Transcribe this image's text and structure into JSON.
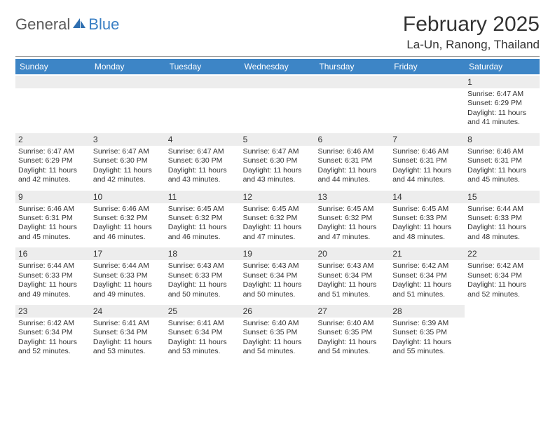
{
  "brand": {
    "general": "General",
    "blue": "Blue"
  },
  "title": "February 2025",
  "location": "La-Un, Ranong, Thailand",
  "dayheaders": [
    "Sunday",
    "Monday",
    "Tuesday",
    "Wednesday",
    "Thursday",
    "Friday",
    "Saturday"
  ],
  "colors": {
    "header_bg": "#3d85c6",
    "header_text": "#ffffff",
    "numbar_bg": "#ededed",
    "text": "#333333",
    "rule": "#9a9a9a",
    "logo_gray": "#5a5a5a",
    "logo_blue": "#3a7fc4"
  },
  "typography": {
    "title_fontsize": 30,
    "location_fontsize": 17,
    "dayheader_fontsize": 12,
    "daynum_fontsize": 12,
    "body_fontsize": 10.5
  },
  "layout": {
    "columns": 7,
    "rows": 5,
    "blank_cells_first_row": 6
  },
  "weeks": [
    [
      null,
      null,
      null,
      null,
      null,
      null,
      {
        "num": "1",
        "sunrise": "Sunrise: 6:47 AM",
        "sunset": "Sunset: 6:29 PM",
        "day1": "Daylight: 11 hours",
        "day2": "and 41 minutes."
      }
    ],
    [
      {
        "num": "2",
        "sunrise": "Sunrise: 6:47 AM",
        "sunset": "Sunset: 6:29 PM",
        "day1": "Daylight: 11 hours",
        "day2": "and 42 minutes."
      },
      {
        "num": "3",
        "sunrise": "Sunrise: 6:47 AM",
        "sunset": "Sunset: 6:30 PM",
        "day1": "Daylight: 11 hours",
        "day2": "and 42 minutes."
      },
      {
        "num": "4",
        "sunrise": "Sunrise: 6:47 AM",
        "sunset": "Sunset: 6:30 PM",
        "day1": "Daylight: 11 hours",
        "day2": "and 43 minutes."
      },
      {
        "num": "5",
        "sunrise": "Sunrise: 6:47 AM",
        "sunset": "Sunset: 6:30 PM",
        "day1": "Daylight: 11 hours",
        "day2": "and 43 minutes."
      },
      {
        "num": "6",
        "sunrise": "Sunrise: 6:46 AM",
        "sunset": "Sunset: 6:31 PM",
        "day1": "Daylight: 11 hours",
        "day2": "and 44 minutes."
      },
      {
        "num": "7",
        "sunrise": "Sunrise: 6:46 AM",
        "sunset": "Sunset: 6:31 PM",
        "day1": "Daylight: 11 hours",
        "day2": "and 44 minutes."
      },
      {
        "num": "8",
        "sunrise": "Sunrise: 6:46 AM",
        "sunset": "Sunset: 6:31 PM",
        "day1": "Daylight: 11 hours",
        "day2": "and 45 minutes."
      }
    ],
    [
      {
        "num": "9",
        "sunrise": "Sunrise: 6:46 AM",
        "sunset": "Sunset: 6:31 PM",
        "day1": "Daylight: 11 hours",
        "day2": "and 45 minutes."
      },
      {
        "num": "10",
        "sunrise": "Sunrise: 6:46 AM",
        "sunset": "Sunset: 6:32 PM",
        "day1": "Daylight: 11 hours",
        "day2": "and 46 minutes."
      },
      {
        "num": "11",
        "sunrise": "Sunrise: 6:45 AM",
        "sunset": "Sunset: 6:32 PM",
        "day1": "Daylight: 11 hours",
        "day2": "and 46 minutes."
      },
      {
        "num": "12",
        "sunrise": "Sunrise: 6:45 AM",
        "sunset": "Sunset: 6:32 PM",
        "day1": "Daylight: 11 hours",
        "day2": "and 47 minutes."
      },
      {
        "num": "13",
        "sunrise": "Sunrise: 6:45 AM",
        "sunset": "Sunset: 6:32 PM",
        "day1": "Daylight: 11 hours",
        "day2": "and 47 minutes."
      },
      {
        "num": "14",
        "sunrise": "Sunrise: 6:45 AM",
        "sunset": "Sunset: 6:33 PM",
        "day1": "Daylight: 11 hours",
        "day2": "and 48 minutes."
      },
      {
        "num": "15",
        "sunrise": "Sunrise: 6:44 AM",
        "sunset": "Sunset: 6:33 PM",
        "day1": "Daylight: 11 hours",
        "day2": "and 48 minutes."
      }
    ],
    [
      {
        "num": "16",
        "sunrise": "Sunrise: 6:44 AM",
        "sunset": "Sunset: 6:33 PM",
        "day1": "Daylight: 11 hours",
        "day2": "and 49 minutes."
      },
      {
        "num": "17",
        "sunrise": "Sunrise: 6:44 AM",
        "sunset": "Sunset: 6:33 PM",
        "day1": "Daylight: 11 hours",
        "day2": "and 49 minutes."
      },
      {
        "num": "18",
        "sunrise": "Sunrise: 6:43 AM",
        "sunset": "Sunset: 6:33 PM",
        "day1": "Daylight: 11 hours",
        "day2": "and 50 minutes."
      },
      {
        "num": "19",
        "sunrise": "Sunrise: 6:43 AM",
        "sunset": "Sunset: 6:34 PM",
        "day1": "Daylight: 11 hours",
        "day2": "and 50 minutes."
      },
      {
        "num": "20",
        "sunrise": "Sunrise: 6:43 AM",
        "sunset": "Sunset: 6:34 PM",
        "day1": "Daylight: 11 hours",
        "day2": "and 51 minutes."
      },
      {
        "num": "21",
        "sunrise": "Sunrise: 6:42 AM",
        "sunset": "Sunset: 6:34 PM",
        "day1": "Daylight: 11 hours",
        "day2": "and 51 minutes."
      },
      {
        "num": "22",
        "sunrise": "Sunrise: 6:42 AM",
        "sunset": "Sunset: 6:34 PM",
        "day1": "Daylight: 11 hours",
        "day2": "and 52 minutes."
      }
    ],
    [
      {
        "num": "23",
        "sunrise": "Sunrise: 6:42 AM",
        "sunset": "Sunset: 6:34 PM",
        "day1": "Daylight: 11 hours",
        "day2": "and 52 minutes."
      },
      {
        "num": "24",
        "sunrise": "Sunrise: 6:41 AM",
        "sunset": "Sunset: 6:34 PM",
        "day1": "Daylight: 11 hours",
        "day2": "and 53 minutes."
      },
      {
        "num": "25",
        "sunrise": "Sunrise: 6:41 AM",
        "sunset": "Sunset: 6:34 PM",
        "day1": "Daylight: 11 hours",
        "day2": "and 53 minutes."
      },
      {
        "num": "26",
        "sunrise": "Sunrise: 6:40 AM",
        "sunset": "Sunset: 6:35 PM",
        "day1": "Daylight: 11 hours",
        "day2": "and 54 minutes."
      },
      {
        "num": "27",
        "sunrise": "Sunrise: 6:40 AM",
        "sunset": "Sunset: 6:35 PM",
        "day1": "Daylight: 11 hours",
        "day2": "and 54 minutes."
      },
      {
        "num": "28",
        "sunrise": "Sunrise: 6:39 AM",
        "sunset": "Sunset: 6:35 PM",
        "day1": "Daylight: 11 hours",
        "day2": "and 55 minutes."
      },
      null
    ]
  ]
}
